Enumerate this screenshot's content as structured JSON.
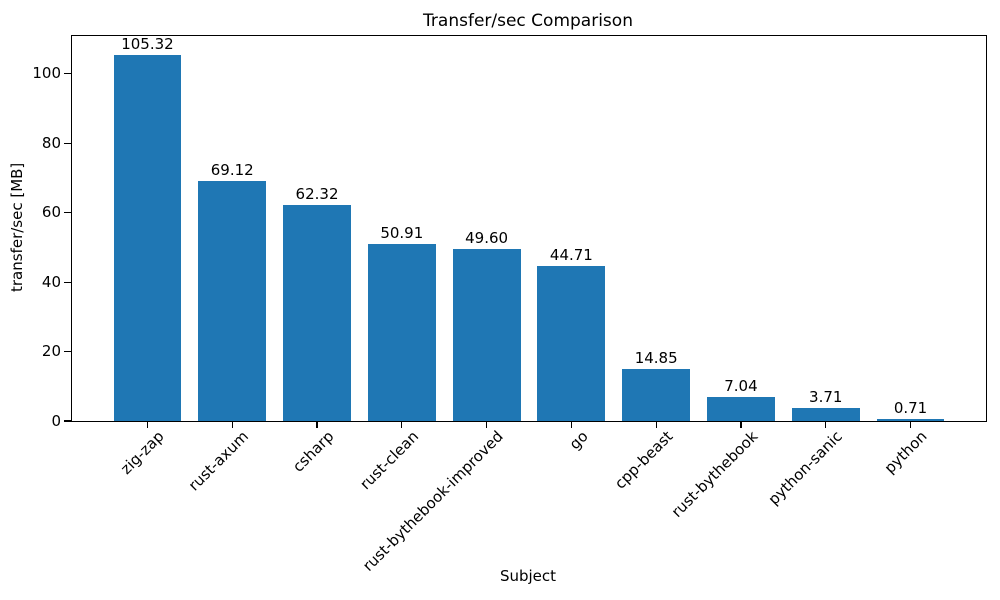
{
  "chart_data": {
    "type": "bar",
    "title": "Transfer/sec Comparison",
    "xlabel": "Subject",
    "ylabel": "transfer/sec [MB]",
    "categories": [
      "zig-zap",
      "rust-axum",
      "csharp",
      "rust-clean",
      "rust-bythebook-improved",
      "go",
      "cpp-beast",
      "rust-bythebook",
      "python-sanic",
      "python"
    ],
    "values": [
      105.32,
      69.12,
      62.32,
      50.91,
      49.6,
      44.71,
      14.85,
      7.04,
      3.71,
      0.71
    ],
    "value_labels": [
      "105.32",
      "69.12",
      "62.32",
      "50.91",
      "49.60",
      "44.71",
      "14.85",
      "7.04",
      "3.71",
      "0.71"
    ],
    "yticks": [
      0,
      20,
      40,
      60,
      80,
      100
    ],
    "ytick_labels": [
      "0",
      "20",
      "40",
      "60",
      "80",
      "100"
    ],
    "ylim": [
      0,
      110.9
    ],
    "bar_color": "#1f77b4",
    "axis_color": "#000000",
    "background_color": "#ffffff",
    "grid": false,
    "legend_position": "none",
    "xtick_rotation_deg": 45
  }
}
